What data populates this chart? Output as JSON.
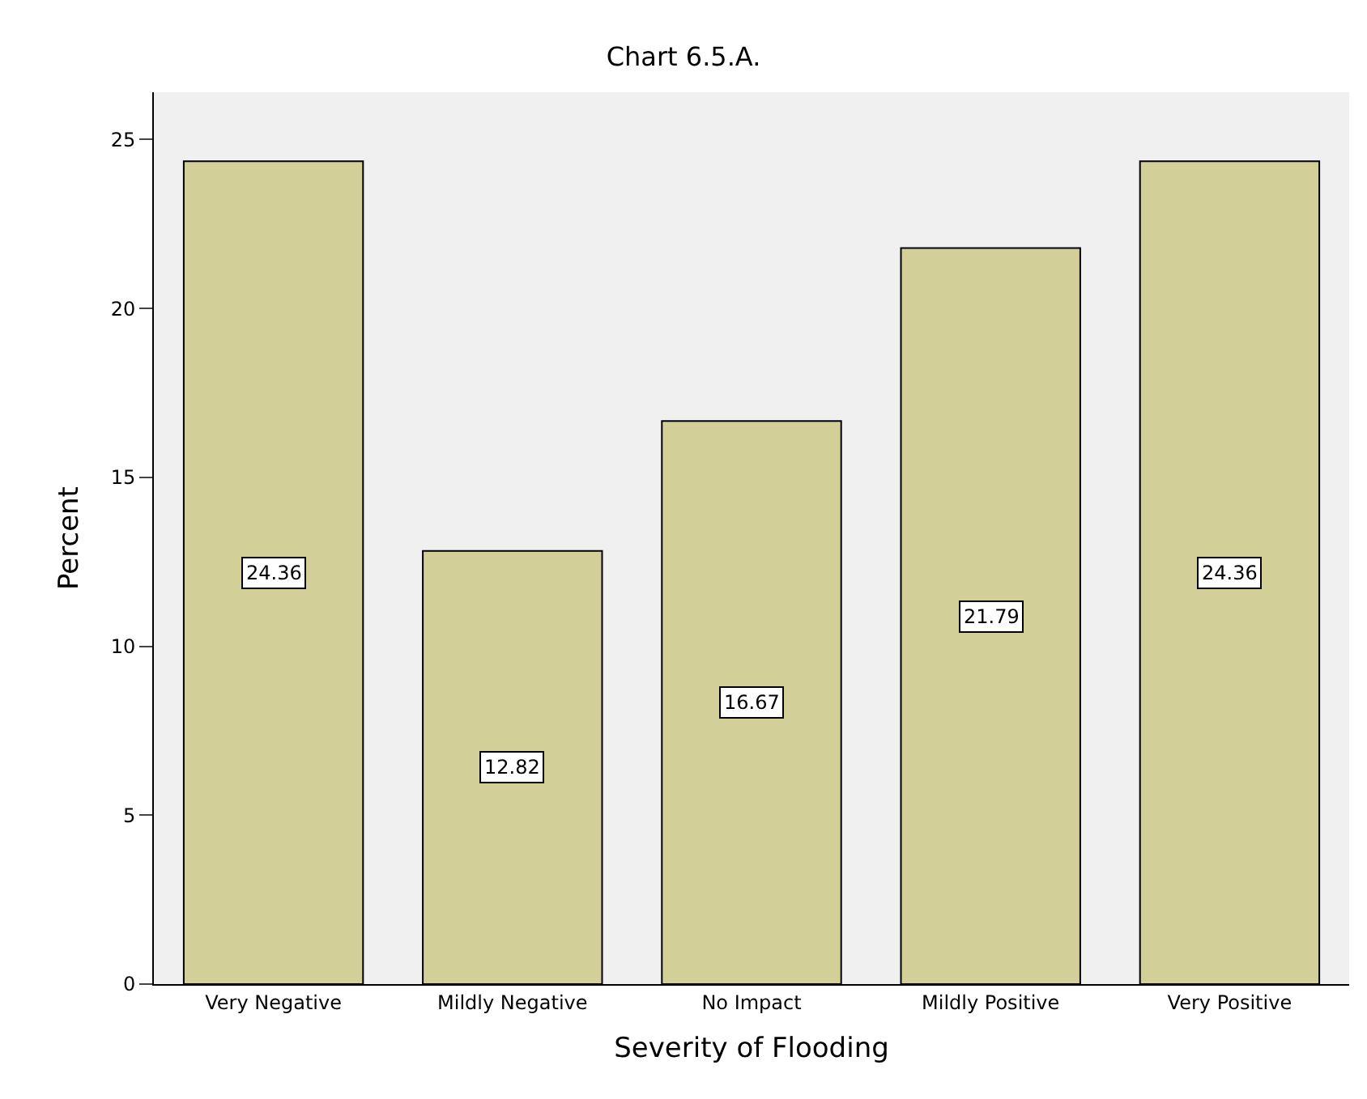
{
  "chart_data": {
    "type": "bar",
    "title": "Chart 6.5.A.",
    "xlabel": "Severity of Flooding",
    "ylabel": "Percent",
    "categories": [
      "Very Negative",
      "Mildly Negative",
      "No Impact",
      "Mildly Positive",
      "Very Positive"
    ],
    "values": [
      24.36,
      12.82,
      16.67,
      21.79,
      24.36
    ],
    "color": "#d3cf99",
    "ylim": [
      0,
      26.4
    ],
    "yticks": [
      0,
      5,
      10,
      15,
      20,
      25
    ],
    "grid": false,
    "data_labels": true
  }
}
